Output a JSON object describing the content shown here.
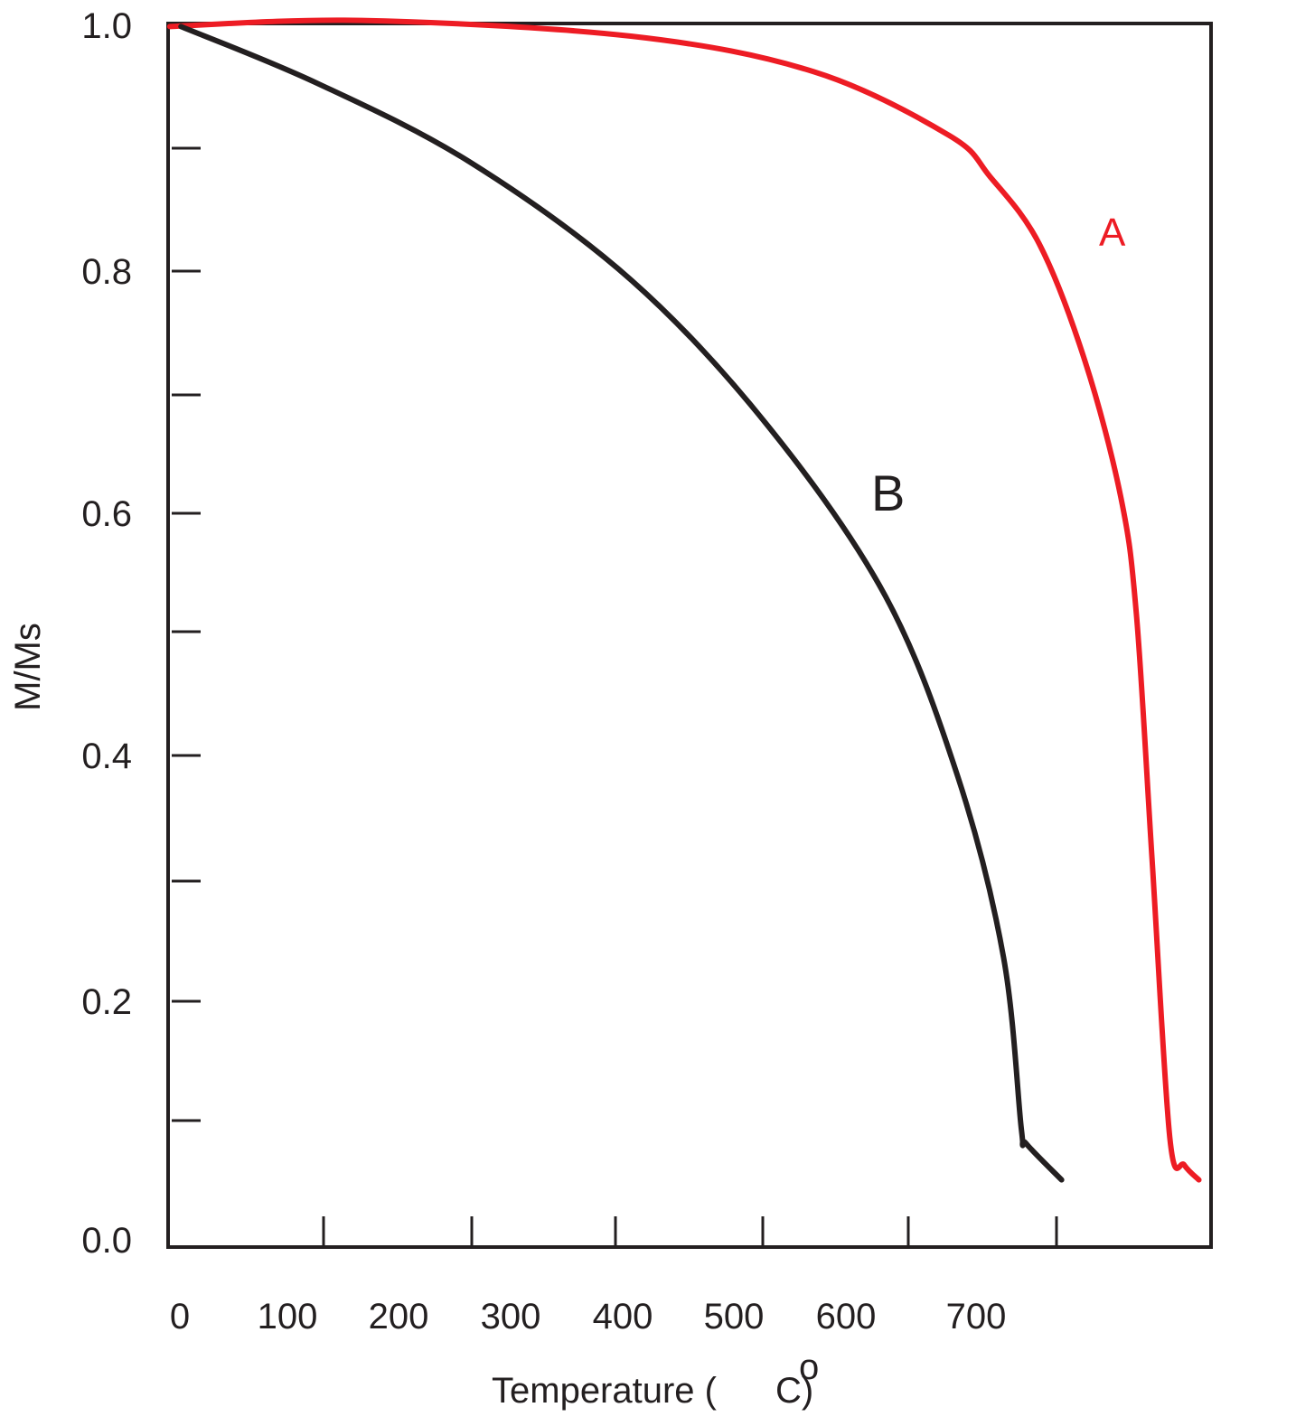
{
  "chart_data": {
    "type": "line",
    "title": "",
    "xlabel": "Temperature (",
    "xlabel_unit": "C)",
    "xlabel_degree": "o",
    "ylabel": "M/Ms",
    "xlim": [
      -10,
      925
    ],
    "ylim": [
      0.0,
      1.0
    ],
    "grid": false,
    "x_tick_labels": [
      "0",
      "100",
      "200",
      "300",
      "400",
      "500",
      "600",
      "700"
    ],
    "y_tick_labels": [
      "1.0",
      "0.8",
      "0.6",
      "0.4",
      "0.2",
      "0.0"
    ],
    "colors": {
      "A": "#ed1c24",
      "B": "#231f20",
      "axis": "#231f20"
    },
    "series": [
      {
        "name": "A",
        "color": "#ed1c24",
        "x": [
          -9,
          163,
          405,
          568,
          689,
          726,
          770,
          811,
          843,
          857,
          871,
          887,
          900,
          913
        ],
        "y": [
          0.999,
          1.004,
          0.991,
          0.962,
          0.91,
          0.876,
          0.821,
          0.725,
          0.614,
          0.518,
          0.318,
          0.089,
          0.067,
          0.055
        ]
      },
      {
        "name": "B",
        "color": "#231f20",
        "x": [
          1,
          122,
          260,
          405,
          527,
          632,
          697,
          738,
          754,
          758,
          790
        ],
        "y": [
          0.999,
          0.953,
          0.888,
          0.791,
          0.672,
          0.533,
          0.385,
          0.237,
          0.096,
          0.085,
          0.055
        ]
      }
    ]
  }
}
